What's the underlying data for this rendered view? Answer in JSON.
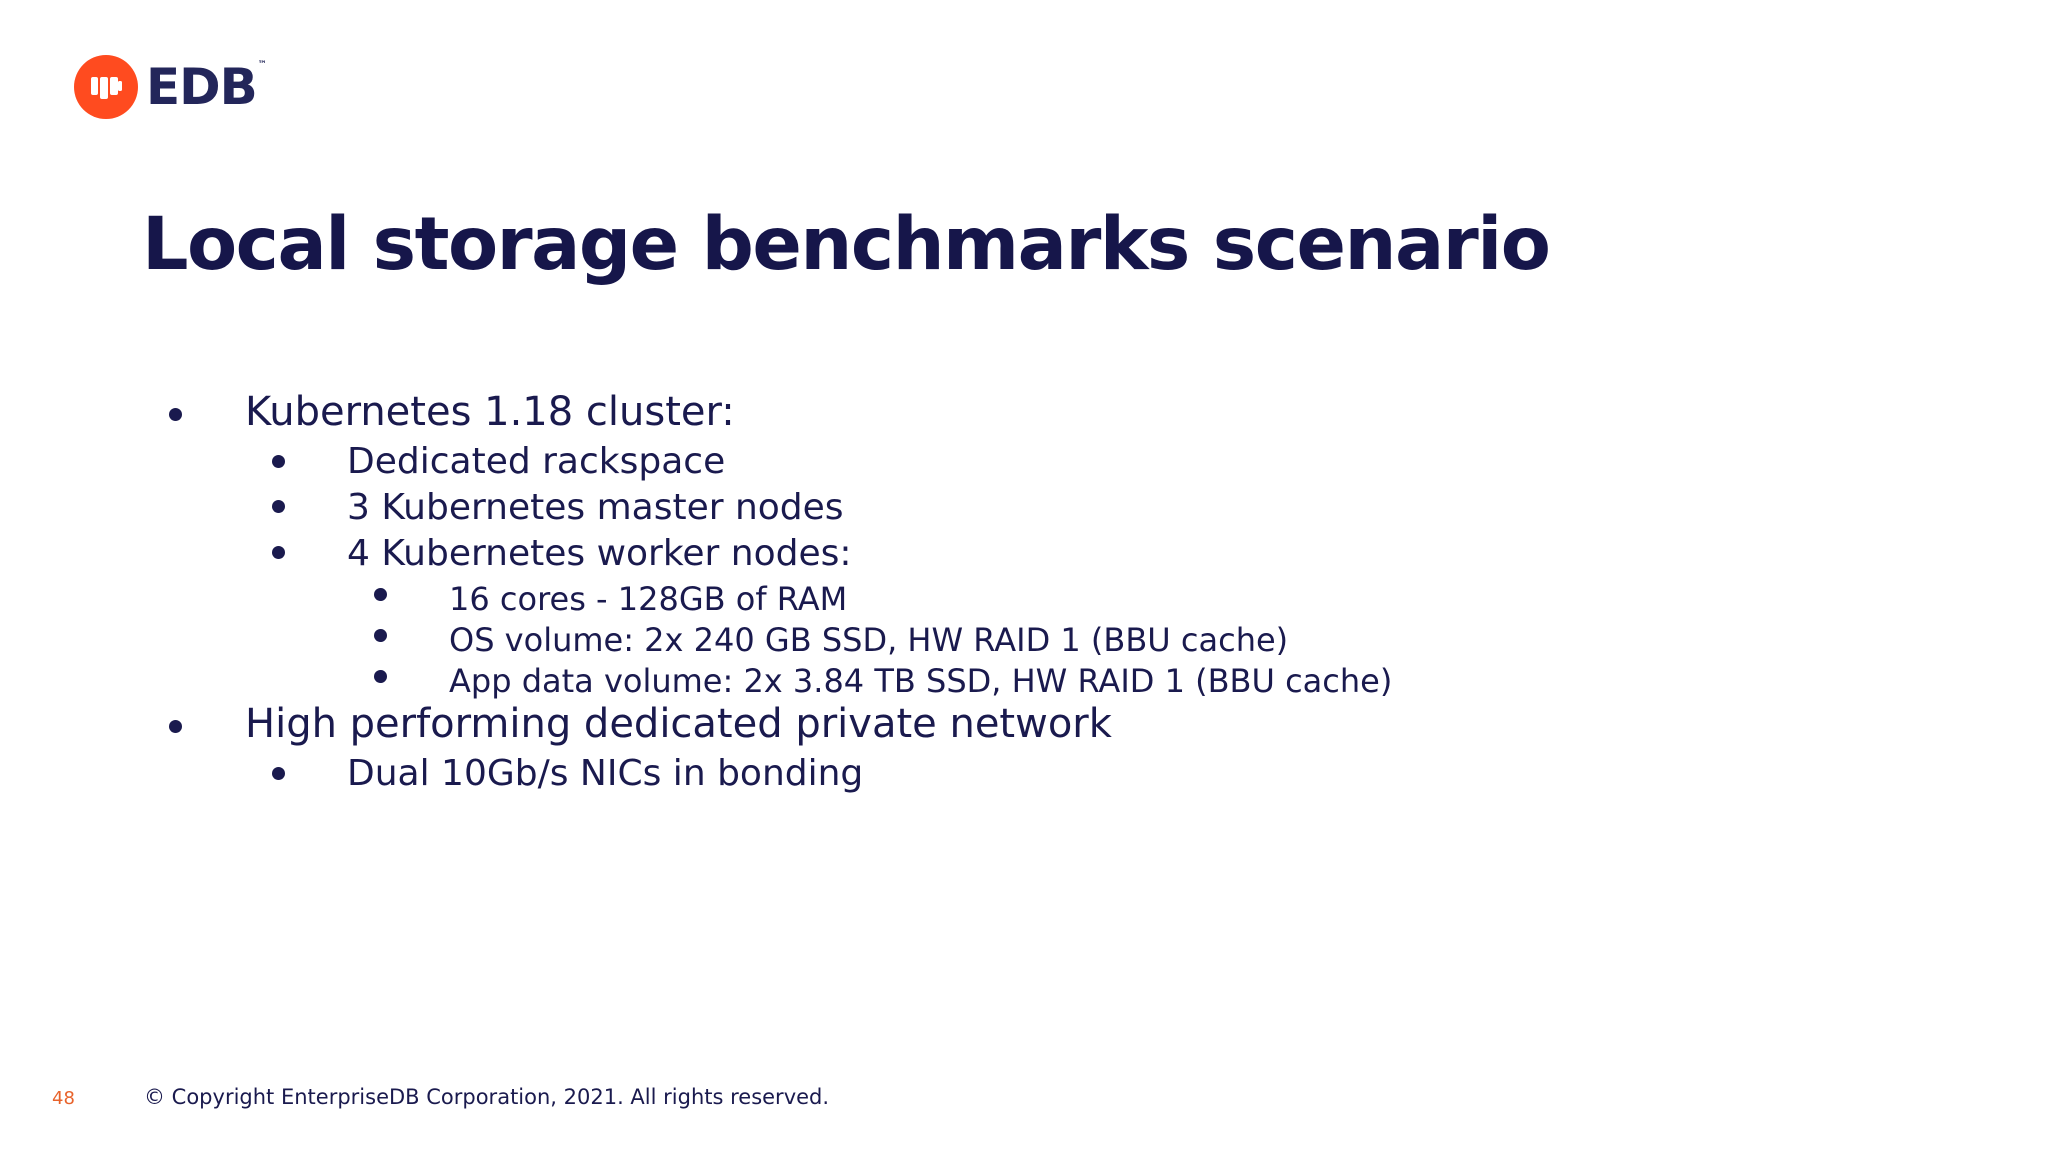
{
  "brand": {
    "logo_text": "EDB",
    "trademark": "™",
    "logo_icon": "edb-elephant-icon",
    "accent_color": "#ff4b1f",
    "text_color": "#1a1a4e"
  },
  "slide": {
    "title": "Local storage benchmarks scenario",
    "bullets": [
      {
        "text": "Kubernetes 1.18 cluster:",
        "children": [
          {
            "text": "Dedicated rackspace"
          },
          {
            "text": "3 Kubernetes master nodes"
          },
          {
            "text": "4 Kubernetes worker nodes:",
            "children": [
              {
                "text": "16 cores - 128GB of RAM"
              },
              {
                "text": "OS volume: 2x 240 GB SSD, HW RAID 1 (BBU cache)"
              },
              {
                "text": "App data volume: 2x 3.84 TB SSD, HW RAID 1 (BBU cache)"
              }
            ]
          }
        ]
      },
      {
        "text": "High performing dedicated private network",
        "children": [
          {
            "text": "Dual 10Gb/s NICs in bonding"
          }
        ]
      }
    ]
  },
  "footer": {
    "page_number": "48",
    "page_number_color": "#e8632b",
    "copyright": "© Copyright EnterpriseDB Corporation, 2021. All rights reserved."
  }
}
